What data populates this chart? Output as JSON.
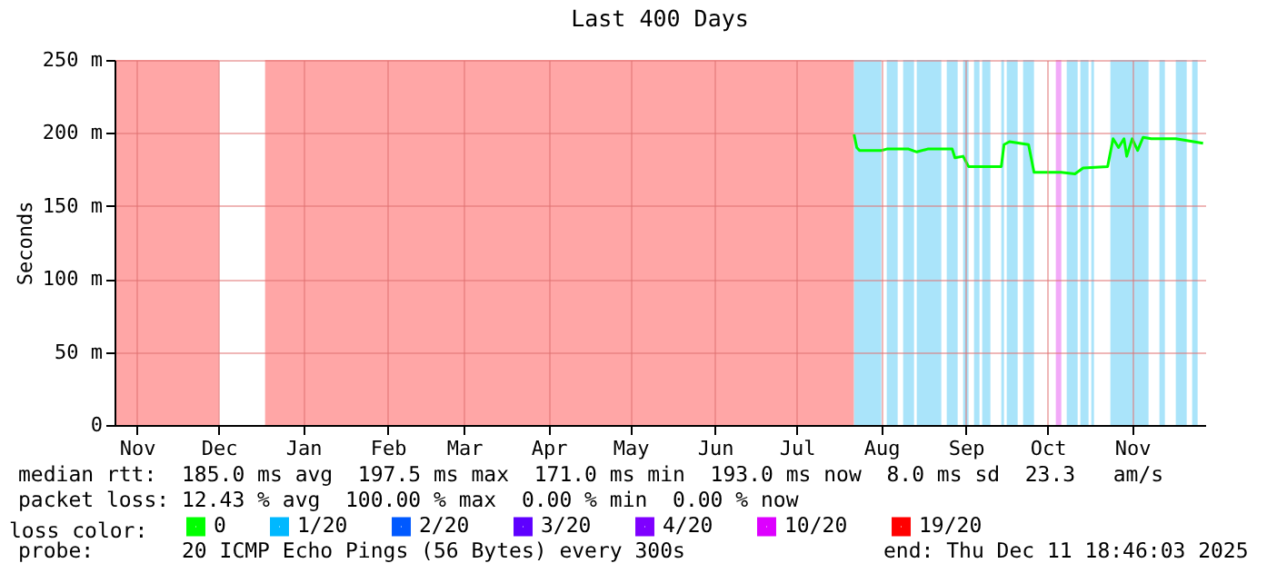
{
  "chart_data": {
    "type": "line",
    "title": "Last 400 Days",
    "ylabel": "Seconds",
    "xlim": [
      "2024-11-06T18:46",
      "2025-12-11T18:46"
    ],
    "xticks": [
      {
        "value": "2024-11-15",
        "label": "Nov"
      },
      {
        "value": "2024-12-15",
        "label": "Dec"
      },
      {
        "value": "2025-01-15",
        "label": "Jan"
      },
      {
        "value": "2025-02-15",
        "label": "Feb"
      },
      {
        "value": "2025-03-15",
        "label": "Mar"
      },
      {
        "value": "2025-04-15",
        "label": "Apr"
      },
      {
        "value": "2025-05-15",
        "label": "May"
      },
      {
        "value": "2025-06-15",
        "label": "Jun"
      },
      {
        "value": "2025-07-15",
        "label": "Jul"
      },
      {
        "value": "2025-08-15",
        "label": "Aug"
      },
      {
        "value": "2025-09-15",
        "label": "Sep"
      },
      {
        "value": "2025-10-15",
        "label": "Oct"
      },
      {
        "value": "2025-11-15",
        "label": "Nov"
      }
    ],
    "ylim": [
      0,
      250
    ],
    "yticks": [
      0,
      {
        "value": 50,
        "label": "50 m"
      },
      {
        "value": 100,
        "label": "100 m"
      },
      {
        "value": 150,
        "label": "150 m"
      },
      {
        "value": 200,
        "label": "200 m"
      },
      {
        "value": 250,
        "label": "250 m"
      }
    ],
    "grid": true,
    "marker": "none",
    "line_style": "solid",
    "legend": "bottom",
    "legend_title": "loss color:",
    "x": [
      "2025-08-05",
      "2025-08-06",
      "2025-08-07",
      "2025-08-15",
      "2025-08-17",
      "2025-08-25",
      "2025-08-28",
      "2025-09-01",
      "2025-09-10",
      "2025-09-11",
      "2025-09-14",
      "2025-09-16",
      "2025-09-28",
      "2025-09-29",
      "2025-10-01",
      "2025-10-08",
      "2025-10-10",
      "2025-10-20",
      "2025-10-25",
      "2025-10-28",
      "2025-11-06",
      "2025-11-08",
      "2025-11-10",
      "2025-11-12",
      "2025-11-13",
      "2025-11-15",
      "2025-11-17",
      "2025-11-19",
      "2025-11-22",
      "2025-12-01",
      "2025-12-11"
    ],
    "series": [
      {
        "name": "0",
        "color": "#00ff00",
        "values": [
          199,
          190,
          188,
          188,
          189,
          189,
          187,
          189,
          189,
          183,
          184,
          177,
          177,
          192,
          194,
          192,
          173,
          173,
          172,
          176,
          177,
          196,
          190,
          196,
          184,
          196,
          188,
          197,
          196,
          196,
          193
        ]
      },
      {
        "name": "1/20",
        "color": "#00b8ff",
        "values": [
          null,
          null,
          null,
          null,
          null,
          null,
          null,
          null,
          null,
          null,
          null,
          null,
          null,
          null,
          null,
          null,
          null,
          null,
          null,
          null,
          null,
          null,
          null,
          null,
          null,
          null,
          null,
          null,
          null,
          null,
          null
        ]
      },
      {
        "name": "2/20",
        "color": "#0059ff",
        "values": [
          null,
          null,
          null,
          null,
          null,
          null,
          null,
          null,
          null,
          null,
          null,
          null,
          null,
          null,
          null,
          null,
          null,
          null,
          null,
          null,
          null,
          null,
          null,
          null,
          null,
          null,
          null,
          null,
          null,
          null,
          null
        ]
      },
      {
        "name": "3/20",
        "color": "#5e00ff",
        "values": [
          null,
          null,
          null,
          null,
          null,
          null,
          null,
          null,
          null,
          null,
          null,
          null,
          null,
          null,
          null,
          null,
          null,
          null,
          null,
          null,
          null,
          null,
          null,
          null,
          null,
          null,
          null,
          null,
          null,
          null,
          null
        ]
      },
      {
        "name": "4/20",
        "color": "#7e00ff",
        "values": [
          null,
          null,
          null,
          null,
          null,
          null,
          null,
          null,
          null,
          null,
          null,
          null,
          null,
          null,
          null,
          null,
          null,
          null,
          null,
          null,
          null,
          null,
          null,
          null,
          null,
          null,
          null,
          null,
          null,
          null,
          null
        ]
      },
      {
        "name": "10/20",
        "color": "#dd00ff",
        "values": [
          null,
          null,
          null,
          null,
          null,
          null,
          null,
          null,
          null,
          null,
          null,
          null,
          null,
          null,
          null,
          null,
          null,
          null,
          null,
          null,
          null,
          null,
          null,
          null,
          null,
          null,
          null,
          null,
          null,
          null,
          null
        ]
      },
      {
        "name": "19/20",
        "color": "#ff0000",
        "values": [
          null,
          null,
          null,
          null,
          null,
          null,
          null,
          null,
          null,
          null,
          null,
          null,
          null,
          null,
          null,
          null,
          null,
          null,
          null,
          null,
          null,
          null,
          null,
          null,
          null,
          null,
          null,
          null,
          null,
          null,
          null
        ]
      }
    ],
    "bands": [
      {
        "axis": "x",
        "from": "2024-11-06T18:46",
        "to": "2024-12-15",
        "color": "#ffa6a6"
      },
      {
        "axis": "x",
        "from": "2025-01-01",
        "to": "2025-08-05",
        "color": "#ffa6a6"
      },
      {
        "axis": "x",
        "from": "2025-08-05",
        "to": "2025-08-15",
        "color": "#aae4fa"
      },
      {
        "axis": "x",
        "from": "2025-08-17",
        "to": "2025-08-21",
        "color": "#aae4fa"
      },
      {
        "axis": "x",
        "from": "2025-08-23",
        "to": "2025-08-27",
        "color": "#aae4fa"
      },
      {
        "axis": "x",
        "from": "2025-08-28",
        "to": "2025-09-06",
        "color": "#aae4fa"
      },
      {
        "axis": "x",
        "from": "2025-09-08",
        "to": "2025-09-12",
        "color": "#aae4fa"
      },
      {
        "axis": "x",
        "from": "2025-09-14",
        "to": "2025-09-16",
        "color": "#aae4fa"
      },
      {
        "axis": "x",
        "from": "2025-09-18",
        "to": "2025-09-20",
        "color": "#aae4fa"
      },
      {
        "axis": "x",
        "from": "2025-09-21",
        "to": "2025-09-24",
        "color": "#aae4fa"
      },
      {
        "axis": "x",
        "from": "2025-09-28",
        "to": "2025-09-29",
        "color": "#aae4fa"
      },
      {
        "axis": "x",
        "from": "2025-09-30",
        "to": "2025-10-04",
        "color": "#aae4fa"
      },
      {
        "axis": "x",
        "from": "2025-10-06",
        "to": "2025-10-10",
        "color": "#aae4fa"
      },
      {
        "axis": "x",
        "from": "2025-10-18",
        "to": "2025-10-20",
        "color": "#f2aaf8"
      },
      {
        "axis": "x",
        "from": "2025-10-22",
        "to": "2025-10-26",
        "color": "#aae4fa"
      },
      {
        "axis": "x",
        "from": "2025-10-27",
        "to": "2025-10-30",
        "color": "#aae4fa"
      },
      {
        "axis": "x",
        "from": "2025-10-31",
        "to": "2025-11-01",
        "color": "#aae4fa"
      },
      {
        "axis": "x",
        "from": "2025-11-07",
        "to": "2025-11-21",
        "color": "#aae4fa"
      },
      {
        "axis": "x",
        "from": "2025-11-25",
        "to": "2025-11-27",
        "color": "#aae4fa"
      },
      {
        "axis": "x",
        "from": "2025-12-01",
        "to": "2025-12-05",
        "color": "#aae4fa"
      },
      {
        "axis": "x",
        "from": "2025-12-07",
        "to": "2025-12-09",
        "color": "#aae4fa"
      }
    ],
    "annotations": [
      "median rtt:  185.0 ms avg  197.5 ms max  171.0 ms min  193.0 ms now  8.0 ms sd  23.3   am/s",
      "packet loss: 12.43 % avg  100.00 % max  0.00 % min  0.00 % now",
      "probe:       20 ICMP Echo Pings (56 Bytes) every 300s",
      "end: Thu Dec 11 18:46:03 2025"
    ]
  }
}
